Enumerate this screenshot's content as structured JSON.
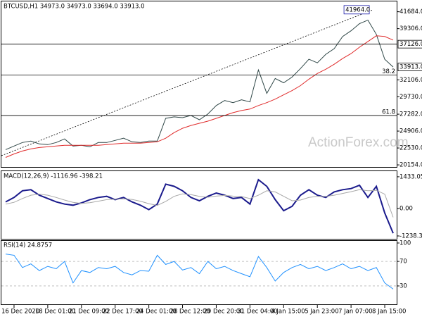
{
  "chart_data": [
    {
      "type": "line",
      "title": "BTCUSD,H1 34973.0 34973.0 33694.0 33913.0",
      "watermark": "ActionForex.com",
      "ylim": [
        19864,
        43133
      ],
      "yticks": [
        {
          "value": 41684,
          "label": "41684.0"
        },
        {
          "value": 39306,
          "label": "39306.0"
        },
        {
          "value": 32106,
          "label": "32106.0"
        },
        {
          "value": 29730,
          "label": "29730.0"
        },
        {
          "value": 27282,
          "label": "27282.0"
        },
        {
          "value": 24906,
          "label": "24906.0"
        },
        {
          "value": 22530,
          "label": "22530.0"
        },
        {
          "value": 20154,
          "label": "20154.0"
        }
      ],
      "series": [
        {
          "color": "#2e4646",
          "values": [
            22300,
            22800,
            23300,
            23500,
            23100,
            23000,
            23300,
            23800,
            22800,
            22900,
            22700,
            23300,
            23300,
            23600,
            23900,
            23400,
            23300,
            23500,
            23500,
            26700,
            26900,
            26800,
            27100,
            26500,
            27300,
            28500,
            29200,
            28900,
            29300,
            29000,
            33500,
            30200,
            32300,
            31700,
            32500,
            33700,
            35000,
            34500,
            35700,
            36500,
            38200,
            39000,
            40000,
            40500,
            38500,
            35000,
            33913
          ]
        },
        {
          "color": "#e02b2b",
          "values": [
            21200,
            21700,
            22100,
            22400,
            22600,
            22700,
            22800,
            22900,
            22900,
            22900,
            22900,
            22900,
            23000,
            23100,
            23200,
            23200,
            23200,
            23300,
            23400,
            23900,
            24700,
            25300,
            25700,
            26000,
            26300,
            26700,
            27100,
            27500,
            27800,
            28000,
            28500,
            28900,
            29400,
            30000,
            30600,
            31300,
            32200,
            33000,
            33600,
            34300,
            35100,
            35800,
            36700,
            37500,
            38300,
            38200,
            37700
          ]
        }
      ],
      "peak": {
        "value": 41964,
        "label": "41964.0"
      },
      "price_line": {
        "value": 37126,
        "label": "37126.0"
      },
      "last_price": {
        "value": 33913,
        "label": "33913.0"
      },
      "fib_levels": [
        {
          "ratio": 38.2,
          "price": 32800
        },
        {
          "ratio": 61.8,
          "price": 27100
        }
      ]
    },
    {
      "type": "line",
      "title": "MACD(12,26,9) -1116.96 -398.21",
      "ylim": [
        -1399,
        1685
      ],
      "yticks": [
        1433.05,
        {
          "value": 0,
          "label": "0.00"
        },
        -1238.38
      ],
      "series": [
        {
          "color": "#1a1a8c",
          "values": [
            300,
            500,
            800,
            850,
            600,
            450,
            300,
            200,
            150,
            250,
            400,
            500,
            550,
            400,
            500,
            300,
            150,
            -50,
            200,
            1100,
            1000,
            800,
            500,
            350,
            550,
            700,
            600,
            450,
            500,
            200,
            1300,
            1000,
            400,
            -100,
            100,
            600,
            850,
            600,
            500,
            750,
            850,
            900,
            1050,
            500,
            1000,
            -200,
            -1116.96
          ]
        },
        {
          "color": "#a8a8a8",
          "values": [
            200,
            280,
            450,
            600,
            650,
            600,
            500,
            380,
            280,
            230,
            260,
            330,
            400,
            420,
            440,
            410,
            330,
            220,
            140,
            320,
            550,
            660,
            630,
            550,
            510,
            560,
            590,
            560,
            540,
            450,
            600,
            800,
            750,
            550,
            350,
            380,
            500,
            550,
            550,
            600,
            680,
            760,
            850,
            800,
            820,
            650,
            -398.21
          ]
        }
      ]
    },
    {
      "type": "line",
      "title": "RSI(14) 24.8757",
      "ylim": [
        -1.1,
        103.4
      ],
      "yticks": [
        100,
        70,
        30
      ],
      "series": [
        {
          "color": "#1e90ff",
          "values": [
            82,
            80,
            60,
            66,
            55,
            62,
            58,
            70,
            35,
            55,
            52,
            60,
            58,
            62,
            52,
            48,
            55,
            54,
            80,
            65,
            70,
            56,
            60,
            50,
            70,
            58,
            62,
            55,
            50,
            45,
            78,
            60,
            38,
            52,
            60,
            65,
            58,
            62,
            55,
            60,
            66,
            58,
            62,
            55,
            60,
            35,
            24.8757
          ]
        }
      ],
      "categories": [
        null,
        "16 Dec 2020",
        null,
        null,
        null,
        "18 Dec 01:00",
        null,
        null,
        null,
        "21 Dec 09:00",
        null,
        null,
        null,
        "22 Dec 17:00",
        null,
        null,
        null,
        "24 Dec 01:00",
        null,
        null,
        null,
        "28 Dec 12:00",
        null,
        null,
        null,
        "29 Dec 20:00",
        null,
        null,
        null,
        "31 Dec 04:00",
        null,
        null,
        null,
        "4 Jan 15:00",
        null,
        null,
        null,
        "5 Jan 23:00",
        null,
        null,
        null,
        "7 Jan 07:00",
        null,
        null,
        null,
        "8 Jan 15:00",
        null
      ]
    }
  ]
}
